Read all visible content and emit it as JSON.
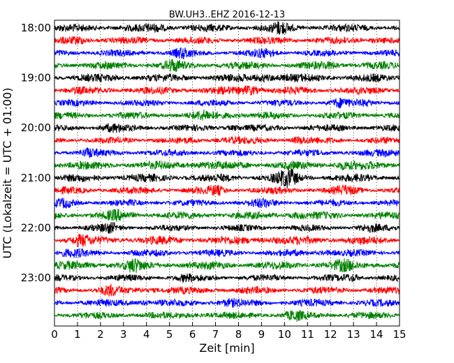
{
  "chart_data": {
    "type": "line",
    "title": "BW.UH3..EHZ 2016-12-13",
    "xlabel": "Zeit  [min]",
    "ylabel": "UTC (Lokalzeit = UTC + 01:00)",
    "xlim": [
      0,
      15
    ],
    "x_ticks": [
      "0",
      "1",
      "2",
      "3",
      "4",
      "5",
      "6",
      "7",
      "8",
      "9",
      "10",
      "11",
      "12",
      "13",
      "14",
      "15"
    ],
    "y_ticks": [
      "18:00",
      "19:00",
      "20:00",
      "21:00",
      "22:00",
      "23:00"
    ],
    "grid": "vertical dotted lines at each minute",
    "trace_interval_minutes": 15,
    "colors": [
      "#000000",
      "#ff0000",
      "#0000ff",
      "#008000"
    ],
    "series": [
      {
        "start": "18:00",
        "color": "#000000"
      },
      {
        "start": "18:15",
        "color": "#ff0000"
      },
      {
        "start": "18:30",
        "color": "#0000ff"
      },
      {
        "start": "18:45",
        "color": "#008000"
      },
      {
        "start": "19:00",
        "color": "#000000"
      },
      {
        "start": "19:15",
        "color": "#ff0000"
      },
      {
        "start": "19:30",
        "color": "#0000ff"
      },
      {
        "start": "19:45",
        "color": "#008000"
      },
      {
        "start": "20:00",
        "color": "#000000"
      },
      {
        "start": "20:15",
        "color": "#ff0000"
      },
      {
        "start": "20:30",
        "color": "#0000ff"
      },
      {
        "start": "20:45",
        "color": "#008000"
      },
      {
        "start": "21:00",
        "color": "#000000"
      },
      {
        "start": "21:15",
        "color": "#ff0000"
      },
      {
        "start": "21:30",
        "color": "#0000ff"
      },
      {
        "start": "21:45",
        "color": "#008000"
      },
      {
        "start": "22:00",
        "color": "#000000"
      },
      {
        "start": "22:15",
        "color": "#ff0000"
      },
      {
        "start": "22:30",
        "color": "#0000ff"
      },
      {
        "start": "22:45",
        "color": "#008000"
      },
      {
        "start": "23:00",
        "color": "#000000"
      },
      {
        "start": "23:15",
        "color": "#ff0000"
      },
      {
        "start": "23:30",
        "color": "#0000ff"
      },
      {
        "start": "23:45",
        "color": "#008000"
      }
    ]
  }
}
